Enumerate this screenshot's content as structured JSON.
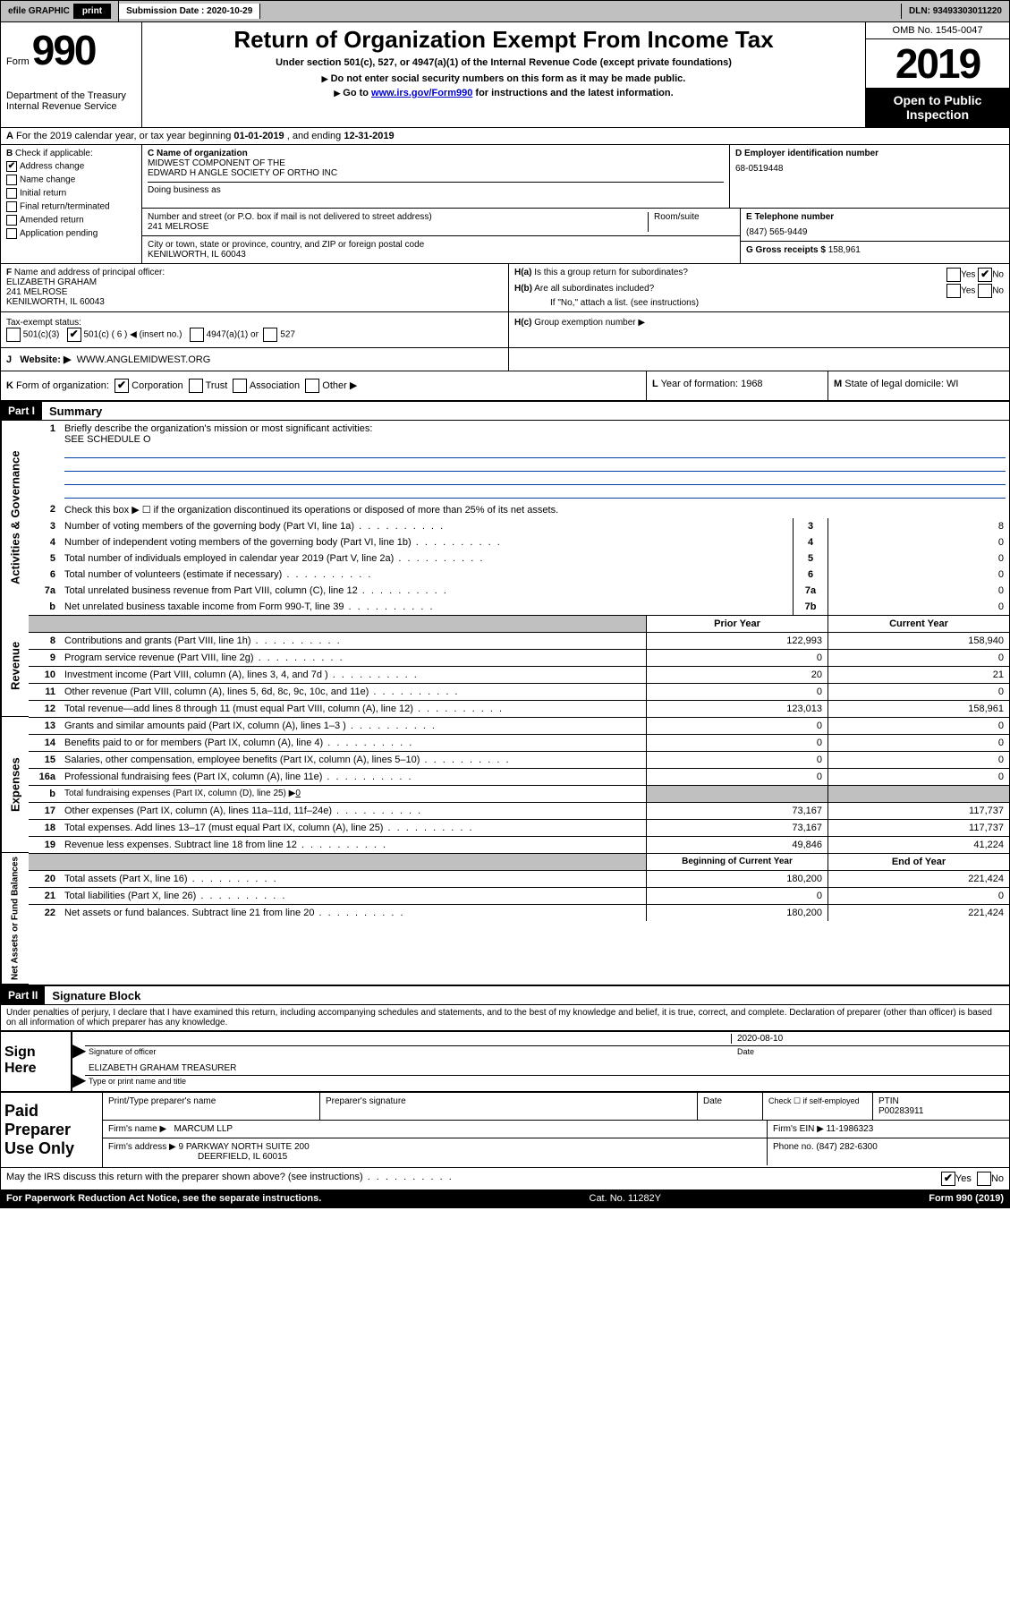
{
  "topbar": {
    "efile": "efile GRAPHIC",
    "print": "print",
    "sub_label": "Submission Date :",
    "sub_date": "2020-10-29",
    "dln_label": "DLN:",
    "dln": "93493303011220"
  },
  "header": {
    "form_word": "Form",
    "form_num": "990",
    "dept": "Department of the Treasury\nInternal Revenue Service",
    "title": "Return of Organization Exempt From Income Tax",
    "subtitle": "Under section 501(c), 527, or 4947(a)(1) of the Internal Revenue Code (except private foundations)",
    "note1": "Do not enter social security numbers on this form as it may be made public.",
    "note2_a": "Go to ",
    "note2_link": "www.irs.gov/Form990",
    "note2_b": " for instructions and the latest information.",
    "omb": "OMB No. 1545-0047",
    "year": "2019",
    "open": "Open to Public\nInspection"
  },
  "rowA": {
    "label": "A",
    "text": "For the 2019 calendar year, or tax year beginning ",
    "begin": "01-01-2019",
    "mid": " , and ending ",
    "end": "12-31-2019"
  },
  "colB": {
    "label": "B",
    "check_label": "Check if applicable:",
    "items": [
      {
        "label": "Address change",
        "checked": true
      },
      {
        "label": "Name change",
        "checked": false
      },
      {
        "label": "Initial return",
        "checked": false
      },
      {
        "label": "Final return/terminated",
        "checked": false
      },
      {
        "label": "Amended return",
        "checked": false
      },
      {
        "label": "Application pending",
        "checked": false
      }
    ]
  },
  "colC": {
    "name_label": "C Name of organization",
    "name1": "MIDWEST COMPONENT OF THE",
    "name2": "EDWARD H ANGLE SOCIETY OF ORTHO INC",
    "dba_label": "Doing business as",
    "street_label": "Number and street (or P.O. box if mail is not delivered to street address)",
    "room_label": "Room/suite",
    "street": "241 MELROSE",
    "city_label": "City or town, state or province, country, and ZIP or foreign postal code",
    "city": "KENILWORTH, IL  60043"
  },
  "colD": {
    "label": "D Employer identification number",
    "ein": "68-0519448",
    "tel_label": "E Telephone number",
    "tel": "(847) 565-9449",
    "gross_label": "G Gross receipts $",
    "gross": "158,961"
  },
  "colF": {
    "label": "F",
    "text": "Name and address of principal officer:",
    "name": "ELIZABETH GRAHAM",
    "addr1": "241 MELROSE",
    "addr2": "KENILWORTH, IL  60043"
  },
  "colH": {
    "ha": "H(a)",
    "ha_text": "Is this a group return for subordinates?",
    "ha_no_checked": true,
    "hb": "H(b)",
    "hb_text": "Are all subordinates included?",
    "hb_note": "If \"No,\" attach a list. (see instructions)",
    "hc": "H(c)",
    "hc_text": "Group exemption number ▶"
  },
  "tax_status": {
    "label": "Tax-exempt status:",
    "c3": "501(c)(3)",
    "c": "501(c) ( 6 ) ◀ (insert no.)",
    "c_checked": true,
    "a1": "4947(a)(1) or",
    "s527": "527"
  },
  "rowJ": {
    "label": "J",
    "web_label": "Website: ▶",
    "web": "WWW.ANGLEMIDWEST.ORG"
  },
  "rowK": {
    "label": "K",
    "form_label": "Form of organization:",
    "corp": "Corporation",
    "corp_checked": true,
    "trust": "Trust",
    "assoc": "Association",
    "other": "Other ▶",
    "L_label": "L",
    "L_text": "Year of formation:",
    "L_val": "1968",
    "M_label": "M",
    "M_text": "State of legal domicile:",
    "M_val": "WI"
  },
  "part1": {
    "label": "Part I",
    "title": "Summary"
  },
  "gov": {
    "tab": "Activities & Governance",
    "line1_num": "1",
    "line1": "Briefly describe the organization's mission or most significant activities:",
    "line1_val": "SEE SCHEDULE O",
    "line2_num": "2",
    "line2": "Check this box ▶ ☐  if the organization discontinued its operations or disposed of more than 25% of its net assets.",
    "rows": [
      {
        "num": "3",
        "text": "Number of voting members of the governing body (Part VI, line 1a)",
        "box": "3",
        "val": "8"
      },
      {
        "num": "4",
        "text": "Number of independent voting members of the governing body (Part VI, line 1b)",
        "box": "4",
        "val": "0"
      },
      {
        "num": "5",
        "text": "Total number of individuals employed in calendar year 2019 (Part V, line 2a)",
        "box": "5",
        "val": "0"
      },
      {
        "num": "6",
        "text": "Total number of volunteers (estimate if necessary)",
        "box": "6",
        "val": "0"
      },
      {
        "num": "7a",
        "text": "Total unrelated business revenue from Part VIII, column (C), line 12",
        "box": "7a",
        "val": "0"
      },
      {
        "num": "b",
        "text": "Net unrelated business taxable income from Form 990-T, line 39",
        "box": "7b",
        "val": "0"
      }
    ]
  },
  "rev": {
    "tab": "Revenue",
    "hdr_prior": "Prior Year",
    "hdr_curr": "Current Year",
    "rows": [
      {
        "num": "8",
        "text": "Contributions and grants (Part VIII, line 1h)",
        "prior": "122,993",
        "curr": "158,940"
      },
      {
        "num": "9",
        "text": "Program service revenue (Part VIII, line 2g)",
        "prior": "0",
        "curr": "0"
      },
      {
        "num": "10",
        "text": "Investment income (Part VIII, column (A), lines 3, 4, and 7d )",
        "prior": "20",
        "curr": "21"
      },
      {
        "num": "11",
        "text": "Other revenue (Part VIII, column (A), lines 5, 6d, 8c, 9c, 10c, and 11e)",
        "prior": "0",
        "curr": "0"
      },
      {
        "num": "12",
        "text": "Total revenue—add lines 8 through 11 (must equal Part VIII, column (A), line 12)",
        "prior": "123,013",
        "curr": "158,961"
      }
    ]
  },
  "exp": {
    "tab": "Expenses",
    "rows": [
      {
        "num": "13",
        "text": "Grants and similar amounts paid (Part IX, column (A), lines 1–3 )",
        "prior": "0",
        "curr": "0"
      },
      {
        "num": "14",
        "text": "Benefits paid to or for members (Part IX, column (A), line 4)",
        "prior": "0",
        "curr": "0"
      },
      {
        "num": "15",
        "text": "Salaries, other compensation, employee benefits (Part IX, column (A), lines 5–10)",
        "prior": "0",
        "curr": "0"
      },
      {
        "num": "16a",
        "text": "Professional fundraising fees (Part IX, column (A), line 11e)",
        "prior": "0",
        "curr": "0"
      }
    ],
    "line_b_num": "b",
    "line_b": "Total fundraising expenses (Part IX, column (D), line 25) ▶",
    "line_b_val": "0",
    "rows2": [
      {
        "num": "17",
        "text": "Other expenses (Part IX, column (A), lines 11a–11d, 11f–24e)",
        "prior": "73,167",
        "curr": "117,737"
      },
      {
        "num": "18",
        "text": "Total expenses. Add lines 13–17 (must equal Part IX, column (A), line 25)",
        "prior": "73,167",
        "curr": "117,737"
      },
      {
        "num": "19",
        "text": "Revenue less expenses. Subtract line 18 from line 12",
        "prior": "49,846",
        "curr": "41,224"
      }
    ]
  },
  "net": {
    "tab": "Net Assets or Fund Balances",
    "hdr_begin": "Beginning of Current Year",
    "hdr_end": "End of Year",
    "rows": [
      {
        "num": "20",
        "text": "Total assets (Part X, line 16)",
        "prior": "180,200",
        "curr": "221,424"
      },
      {
        "num": "21",
        "text": "Total liabilities (Part X, line 26)",
        "prior": "0",
        "curr": "0"
      },
      {
        "num": "22",
        "text": "Net assets or fund balances. Subtract line 21 from line 20",
        "prior": "180,200",
        "curr": "221,424"
      }
    ]
  },
  "part2": {
    "label": "Part II",
    "title": "Signature Block",
    "penalty": "Under penalties of perjury, I declare that I have examined this return, including accompanying schedules and statements, and to the best of my knowledge and belief, it is true, correct, and complete. Declaration of preparer (other than officer) is based on all information of which preparer has any knowledge."
  },
  "sign": {
    "label": "Sign Here",
    "sig_label": "Signature of officer",
    "date": "2020-08-10",
    "date_label": "Date",
    "name": "ELIZABETH GRAHAM TREASURER",
    "name_label": "Type or print name and title"
  },
  "paid": {
    "label": "Paid Preparer Use Only",
    "hdr_name": "Print/Type preparer's name",
    "hdr_sig": "Preparer's signature",
    "hdr_date": "Date",
    "hdr_check": "Check ☐ if self-employed",
    "hdr_ptin": "PTIN",
    "ptin": "P00283911",
    "firm_label": "Firm's name    ▶",
    "firm": "MARCUM LLP",
    "ein_label": "Firm's EIN ▶",
    "ein": "11-1986323",
    "addr_label": "Firm's address ▶",
    "addr1": "9 PARKWAY NORTH SUITE 200",
    "addr2": "DEERFIELD, IL  60015",
    "phone_label": "Phone no.",
    "phone": "(847) 282-6300"
  },
  "discuss": {
    "text": "May the IRS discuss this return with the preparer shown above? (see instructions)",
    "yes_checked": true
  },
  "footer": {
    "left": "For Paperwork Reduction Act Notice, see the separate instructions.",
    "mid": "Cat. No. 11282Y",
    "right": "Form 990 (2019)"
  }
}
